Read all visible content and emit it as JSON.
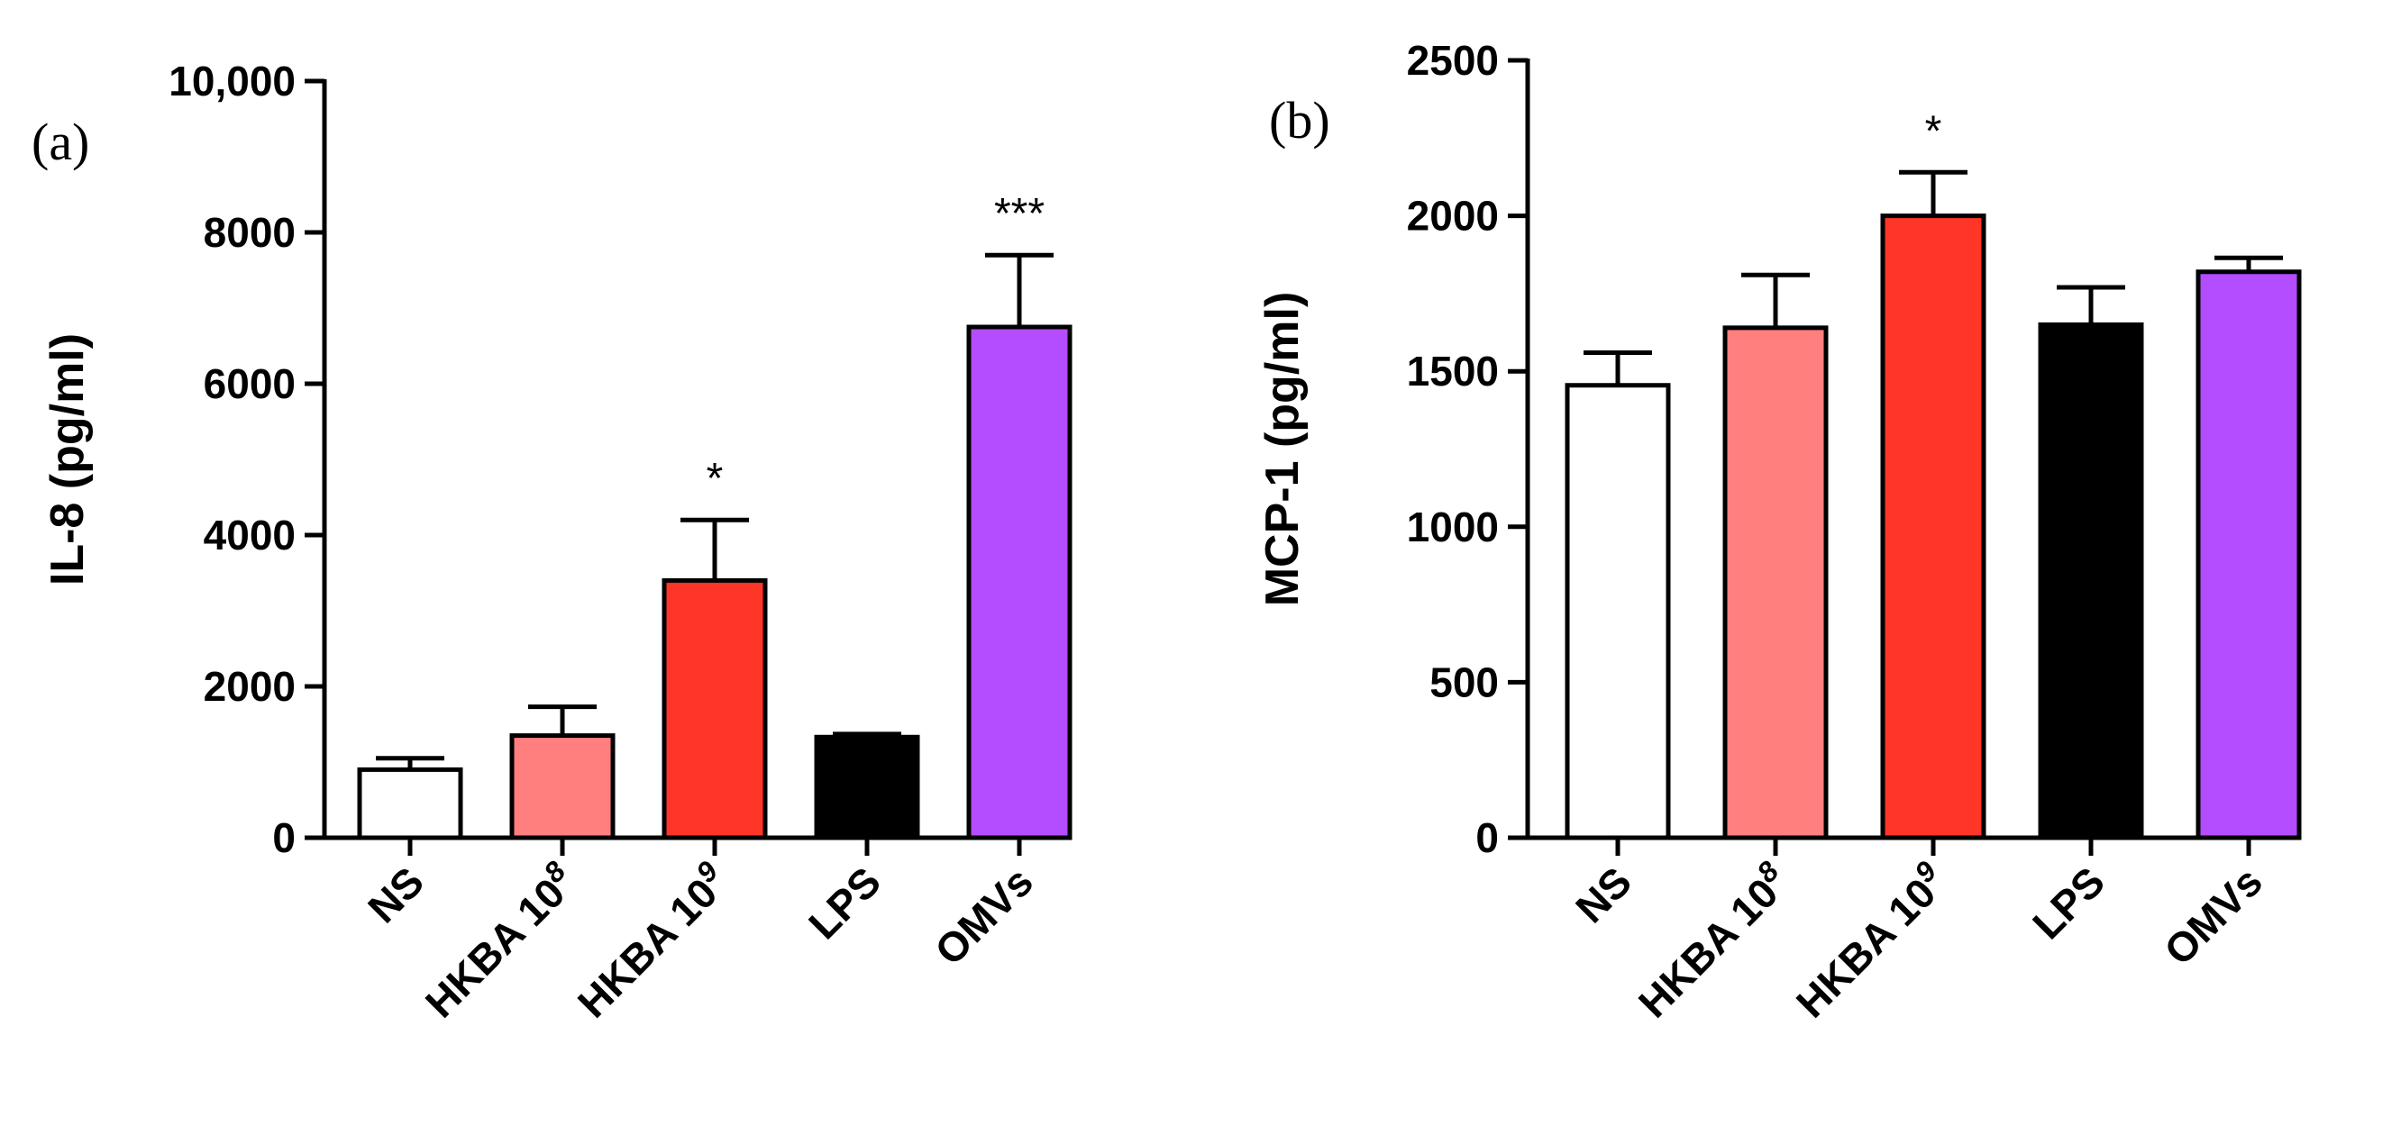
{
  "chart_data": [
    {
      "panel_label": "(a)",
      "type": "bar",
      "ylabel": "IL-8 (pg/ml)",
      "ylim": [
        0,
        10000
      ],
      "yticks": [
        0,
        2000,
        4000,
        6000,
        8000,
        10000
      ],
      "ytick_labels": [
        "0",
        "2000",
        "4000",
        "6000",
        "8000",
        "10,000"
      ],
      "categories": [
        {
          "base": "NS",
          "sup": ""
        },
        {
          "base": "HKBA 10",
          "sup": "8"
        },
        {
          "base": "HKBA 10",
          "sup": "9"
        },
        {
          "base": "LPS",
          "sup": ""
        },
        {
          "base": "OMVs",
          "sup": ""
        }
      ],
      "values": [
        900,
        1350,
        3400,
        1330,
        6750
      ],
      "errors": [
        150,
        380,
        800,
        40,
        950
      ],
      "significance": [
        "",
        "",
        "*",
        "",
        "***"
      ],
      "colors": [
        "#ffffff",
        "#ff7f7f",
        "#ff3528",
        "#000000",
        "#b44cff"
      ]
    },
    {
      "panel_label": "(b)",
      "type": "bar",
      "ylabel": "MCP-1 (pg/ml)",
      "ylim": [
        0,
        2500
      ],
      "yticks": [
        0,
        500,
        1000,
        1500,
        2000,
        2500
      ],
      "ytick_labels": [
        "0",
        "500",
        "1000",
        "1500",
        "2000",
        "2500"
      ],
      "categories": [
        {
          "base": "NS",
          "sup": ""
        },
        {
          "base": "HKBA 10",
          "sup": "8"
        },
        {
          "base": "HKBA 10",
          "sup": "9"
        },
        {
          "base": "LPS",
          "sup": ""
        },
        {
          "base": "OMVs",
          "sup": ""
        }
      ],
      "values": [
        1455,
        1640,
        2000,
        1650,
        1820
      ],
      "errors": [
        105,
        170,
        140,
        120,
        45
      ],
      "significance": [
        "",
        "",
        "*",
        "",
        ""
      ],
      "colors": [
        "#ffffff",
        "#ff7f7f",
        "#ff3528",
        "#000000",
        "#b44cff"
      ]
    }
  ]
}
